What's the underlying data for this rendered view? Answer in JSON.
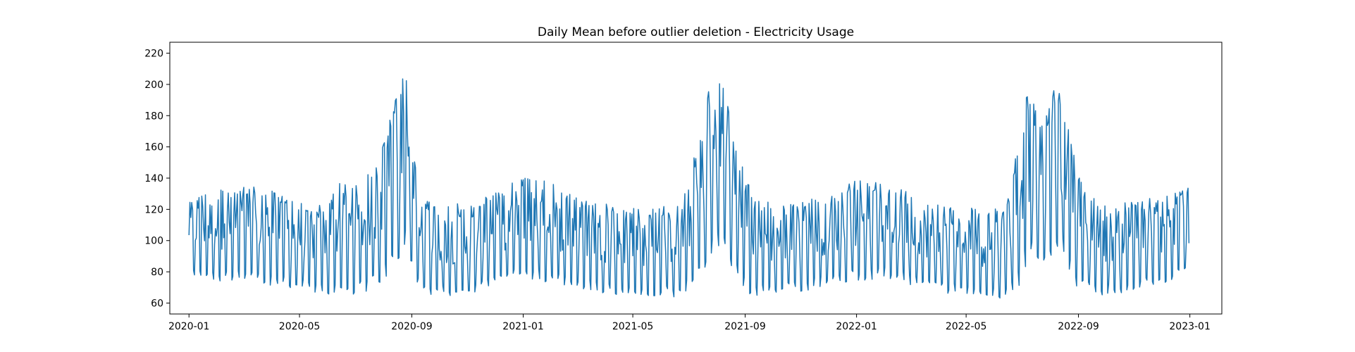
{
  "chart_data": {
    "type": "line",
    "title": "Daily Mean before outlier deletion - Electricity Usage",
    "xlabel": "",
    "ylabel": "",
    "series_color": "#1f77b4",
    "x_ticks": [
      "2020-01",
      "2020-05",
      "2020-09",
      "2021-01",
      "2021-05",
      "2021-09",
      "2022-01",
      "2022-05",
      "2022-09",
      "2023-01"
    ],
    "y_ticks": [
      60,
      80,
      100,
      120,
      140,
      160,
      180,
      200,
      220
    ],
    "xlim": [
      "2019-12-11",
      "2023-02-05"
    ],
    "ylim": [
      53,
      227
    ],
    "grid": false,
    "legend": "none",
    "data_range": [
      "2020-01-01",
      "2022-12-31"
    ],
    "envelope": {
      "x": [
        "2020-01-01",
        "2020-02-01",
        "2020-03-01",
        "2020-04-01",
        "2020-05-01",
        "2020-05-15",
        "2020-06-01",
        "2020-06-15",
        "2020-07-01",
        "2020-07-15",
        "2020-08-01",
        "2020-08-10",
        "2020-08-20",
        "2020-08-27",
        "2020-09-01",
        "2020-09-10",
        "2020-09-20",
        "2020-10-01",
        "2020-11-01",
        "2020-12-01",
        "2021-01-01",
        "2021-02-01",
        "2021-03-01",
        "2021-04-01",
        "2021-05-01",
        "2021-06-01",
        "2021-06-15",
        "2021-07-01",
        "2021-07-15",
        "2021-07-25",
        "2021-08-05",
        "2021-08-15",
        "2021-08-25",
        "2021-09-05",
        "2021-09-15",
        "2021-10-01",
        "2021-11-01",
        "2021-12-01",
        "2022-01-01",
        "2022-02-01",
        "2022-03-01",
        "2022-04-01",
        "2022-05-01",
        "2022-06-01",
        "2022-06-15",
        "2022-06-25",
        "2022-07-05",
        "2022-07-15",
        "2022-07-25",
        "2022-08-05",
        "2022-08-15",
        "2022-08-25",
        "2022-09-05",
        "2022-09-15",
        "2022-10-01",
        "2022-11-01",
        "2022-12-01",
        "2022-12-31"
      ],
      "high": [
        130,
        134,
        137,
        133,
        128,
        124,
        125,
        140,
        136,
        145,
        165,
        185,
        210,
        205,
        170,
        130,
        126,
        125,
        126,
        132,
        146,
        138,
        130,
        125,
        122,
        122,
        128,
        140,
        175,
        212,
        215,
        185,
        155,
        140,
        128,
        126,
        126,
        131,
        140,
        138,
        133,
        125,
        122,
        122,
        125,
        160,
        195,
        200,
        175,
        205,
        195,
        160,
        140,
        130,
        125,
        127,
        130,
        138
      ],
      "low": [
        75,
        73,
        71,
        69,
        67,
        66,
        64,
        63,
        64,
        66,
        72,
        78,
        88,
        92,
        75,
        65,
        62,
        62,
        64,
        68,
        74,
        71,
        68,
        65,
        63,
        62,
        62,
        65,
        74,
        84,
        90,
        85,
        70,
        64,
        63,
        64,
        66,
        70,
        73,
        74,
        70,
        66,
        63,
        62,
        62,
        64,
        80,
        86,
        78,
        92,
        88,
        72,
        66,
        63,
        64,
        66,
        70,
        76
      ]
    }
  }
}
